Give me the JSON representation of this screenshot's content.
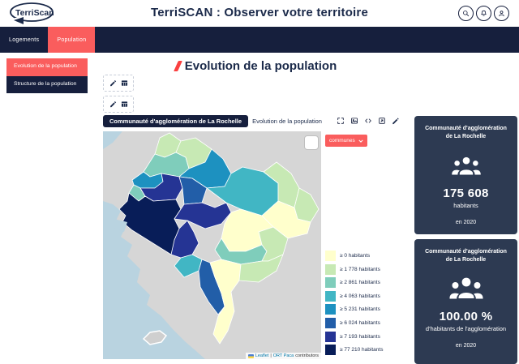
{
  "header": {
    "logo_text": "TerriScan",
    "title": "TerriSCAN : Observer votre territoire"
  },
  "nav": {
    "tabs": [
      {
        "label": "Logements",
        "active": false
      },
      {
        "label": "Population",
        "active": true
      }
    ]
  },
  "sidebar": {
    "items": [
      {
        "label": "Evolution de la population",
        "active": true
      },
      {
        "label": "Structure de la population",
        "active": false
      }
    ]
  },
  "main": {
    "page_title": "Evolution de la population",
    "widget_header": {
      "territory_badge": "Communauté d'agglomération de La Rochelle",
      "widget_title": "Evolution de la population"
    },
    "map": {
      "layer_button_label": "communes",
      "attribution": {
        "leaflet_label": "Leaflet",
        "separator": "|",
        "provider_label": "ORT Paca",
        "suffix": "contributors"
      },
      "legend": [
        {
          "label": "≥ 0 habitants",
          "color": "#ffffcc"
        },
        {
          "label": "≥ 1 778 habitants",
          "color": "#c7e9b4"
        },
        {
          "label": "≥ 2 861 habitants",
          "color": "#7fcdbb"
        },
        {
          "label": "≥ 4 063 habitants",
          "color": "#41b6c4"
        },
        {
          "label": "≥ 5 231 habitants",
          "color": "#1d91c0"
        },
        {
          "label": "≥ 6 024 habitants",
          "color": "#225ea8"
        },
        {
          "label": "≥ 7 193 habitants",
          "color": "#253494"
        },
        {
          "label": "≥ 77 210 habitants",
          "color": "#081d58"
        }
      ]
    }
  },
  "cards": [
    {
      "title": "Communauté d'agglomération de La Rochelle",
      "value": "175 608",
      "unit": "habitants",
      "period": "en 2020",
      "icon": "people-group-icon"
    },
    {
      "title": "Communauté d'agglomération de La Rochelle",
      "value": "100.00 %",
      "unit": "d'habitants de l'agglomération",
      "period": "en 2020",
      "icon": "people-group-icon"
    }
  ],
  "icons": {
    "topbar": [
      "search-icon",
      "bell-icon",
      "user-icon"
    ],
    "widget_toolbar": [
      "fullscreen-icon",
      "image-export-icon",
      "code-icon",
      "embed-icon",
      "pencil-icon"
    ],
    "edit_boxes": [
      "pencil-icon",
      "table-icon"
    ]
  },
  "colors": {
    "accent": "#fa5d5d",
    "navy": "#161f3d",
    "text": "#1b2a4a",
    "card": "#2d3a52",
    "sea": "#b9d3e0",
    "land": "#d6d6d6"
  }
}
